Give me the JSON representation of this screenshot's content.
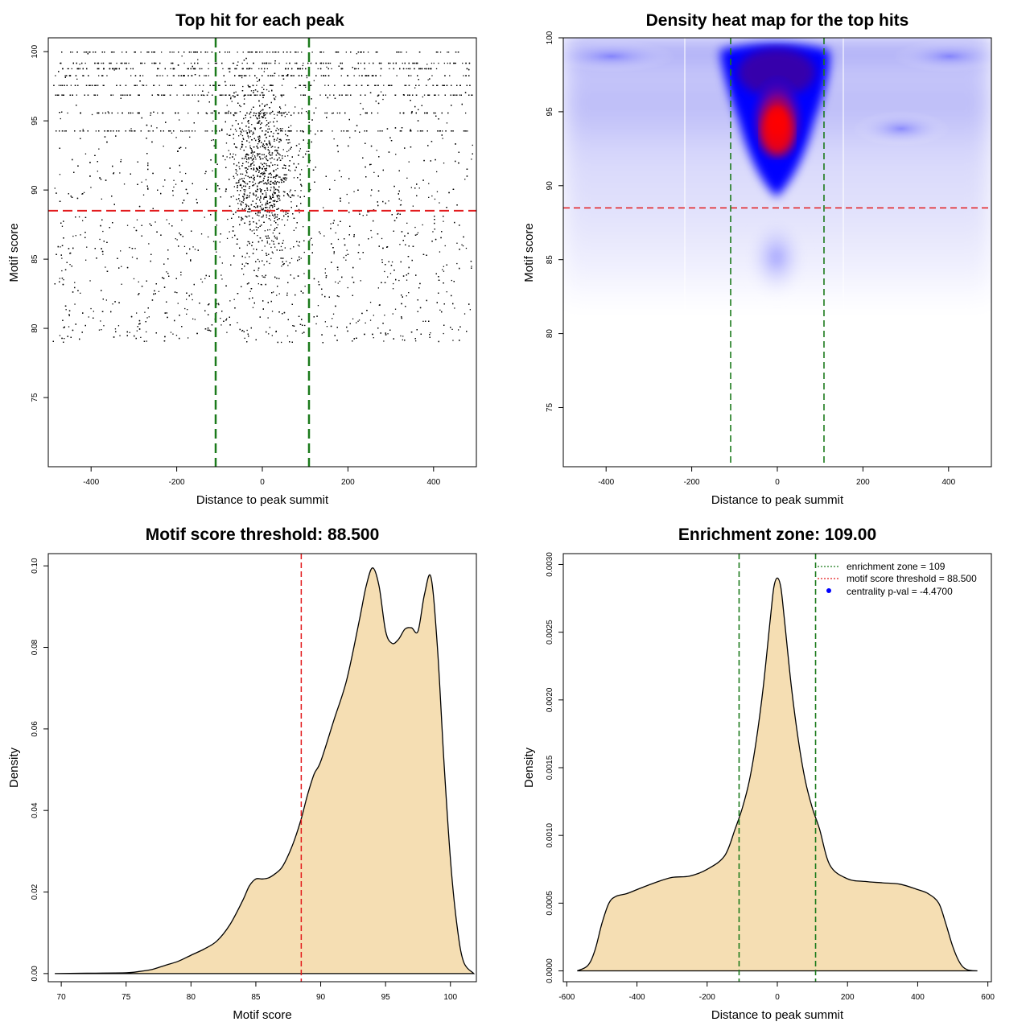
{
  "colors": {
    "points": "#000000",
    "threshold_line": "#e31a1c",
    "zone_line": "#1b7a1b",
    "density_fill": "#f5deb3",
    "density_line": "#000000",
    "heat_low": "#ffffff",
    "heat_mid": "#0000ff",
    "heat_high": "#ff0000",
    "legend_dot": "#0000ff"
  },
  "chart_data": [
    {
      "id": "scatter",
      "type": "scatter",
      "title": "Top hit for each peak",
      "xlabel": "Distance to peak summit",
      "ylabel": "Motif score",
      "xlim": [
        -500,
        500
      ],
      "ylim": [
        70,
        101
      ],
      "xticks": [
        -400,
        -200,
        0,
        200,
        400
      ],
      "yticks": [
        75,
        80,
        85,
        90,
        95,
        100
      ],
      "threshold_y": 88.5,
      "zone_x": [
        -109,
        109
      ],
      "n_points": 7000,
      "point_distribution": "background uniform in x (-490 to 490) with scores mostly 83-100; central cluster near x=0 with scores 85-97; score bands at 94.3, 95.6, 96.9, 97.6, 98.3, 98.8, 99.2, 100"
    },
    {
      "id": "heatmap",
      "type": "heatmap",
      "title": "Density heat map for the top hits",
      "xlabel": "Distance to peak summit",
      "ylabel": "Motif score",
      "xlim": [
        -500,
        500
      ],
      "ylim": [
        71,
        100
      ],
      "xticks": [
        -400,
        -200,
        0,
        200,
        400
      ],
      "yticks": [
        75,
        80,
        85,
        90,
        95,
        100
      ],
      "threshold_y": 88.5,
      "zone_x": [
        -109,
        109
      ],
      "hotspot": {
        "x": 5,
        "y": 93.5
      }
    },
    {
      "id": "score-density",
      "type": "area",
      "title": "Motif score threshold: 88.500",
      "xlabel": "Motif score",
      "ylabel": "Density",
      "xlim": [
        69,
        102
      ],
      "ylim": [
        -0.002,
        0.103
      ],
      "xticks": [
        70,
        75,
        80,
        85,
        90,
        95,
        100
      ],
      "yticks": [
        0.0,
        0.02,
        0.04,
        0.06,
        0.08,
        0.1
      ],
      "ytick_labels": [
        "0.00",
        "0.02",
        "0.04",
        "0.06",
        "0.08",
        "0.10"
      ],
      "threshold_x": 88.5,
      "x": [
        69.5,
        72,
        75,
        76,
        77,
        78,
        79,
        80,
        81,
        82,
        83,
        84,
        84.5,
        85,
        85.5,
        86,
        86.5,
        87,
        87.5,
        88,
        88.5,
        89,
        89.5,
        90,
        91,
        92,
        93,
        93.5,
        94,
        94.5,
        95,
        95.5,
        96,
        96.5,
        97,
        97.5,
        98,
        98.5,
        99,
        99.5,
        100,
        100.5,
        101,
        101.8
      ],
      "y": [
        0.0,
        0.0001,
        0.0002,
        0.0005,
        0.001,
        0.002,
        0.003,
        0.0045,
        0.006,
        0.008,
        0.012,
        0.018,
        0.0215,
        0.0232,
        0.0232,
        0.0235,
        0.0245,
        0.026,
        0.029,
        0.033,
        0.038,
        0.044,
        0.049,
        0.052,
        0.062,
        0.072,
        0.087,
        0.095,
        0.0995,
        0.095,
        0.084,
        0.081,
        0.082,
        0.0845,
        0.0848,
        0.084,
        0.093,
        0.0972,
        0.08,
        0.052,
        0.028,
        0.012,
        0.003,
        0.0
      ]
    },
    {
      "id": "distance-density",
      "type": "area",
      "title": "Enrichment zone: 109.00",
      "xlabel": "Distance to peak summit",
      "ylabel": "Density",
      "xlim": [
        -610,
        610
      ],
      "ylim": [
        -8e-05,
        0.00308
      ],
      "xticks": [
        -600,
        -400,
        -200,
        0,
        200,
        400,
        600
      ],
      "yticks": [
        0.0,
        0.0005,
        0.001,
        0.0015,
        0.002,
        0.0025,
        0.003
      ],
      "ytick_labels": [
        "0.0000",
        "0.0005",
        "0.0010",
        "0.0015",
        "0.0020",
        "0.0025",
        "0.0030"
      ],
      "zone_x": [
        -109,
        109
      ],
      "x": [
        -570,
        -540,
        -520,
        -500,
        -480,
        -460,
        -430,
        -400,
        -350,
        -300,
        -250,
        -200,
        -150,
        -120,
        -100,
        -80,
        -60,
        -40,
        -20,
        -10,
        0,
        10,
        20,
        40,
        60,
        80,
        100,
        120,
        150,
        200,
        250,
        300,
        350,
        400,
        430,
        460,
        480,
        500,
        520,
        540,
        570
      ],
      "y": [
        0.0,
        4e-05,
        0.00015,
        0.00035,
        0.0005,
        0.00055,
        0.00057,
        0.0006,
        0.00065,
        0.00069,
        0.0007,
        0.00075,
        0.00085,
        0.00105,
        0.0012,
        0.0014,
        0.0017,
        0.0021,
        0.0026,
        0.00283,
        0.0029,
        0.00283,
        0.0026,
        0.0021,
        0.0017,
        0.0014,
        0.0012,
        0.00105,
        0.00078,
        0.00068,
        0.00066,
        0.00065,
        0.00064,
        0.0006,
        0.00057,
        0.0005,
        0.00035,
        0.00018,
        6e-05,
        1e-05,
        0.0
      ],
      "legend": [
        {
          "label": "enrichment zone = 109",
          "kind": "dotted-line",
          "color": "#1b7a1b"
        },
        {
          "label": "motif score threshold = 88.500",
          "kind": "dotted-line",
          "color": "#e31a1c"
        },
        {
          "label": "centrality p-val = -4.4700",
          "kind": "dot",
          "color": "#0000ff"
        }
      ]
    }
  ]
}
